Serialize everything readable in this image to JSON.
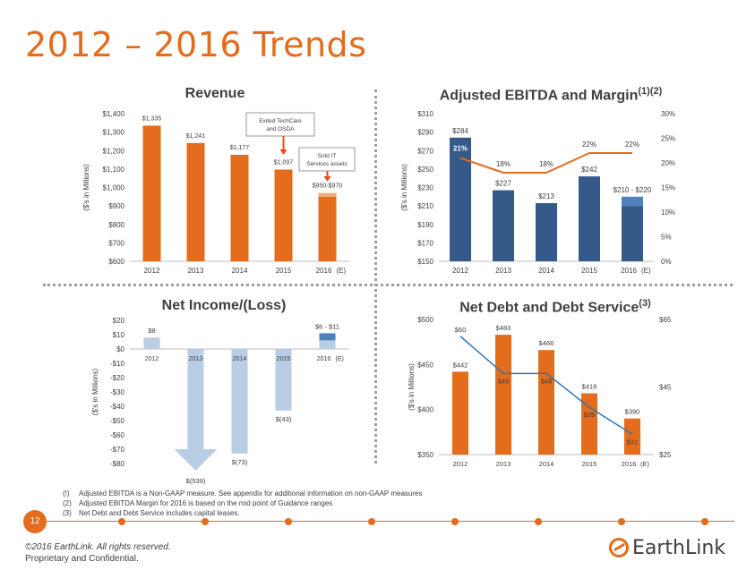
{
  "page_title": "2012 – 2016 Trends",
  "page_number": "12",
  "footnotes": [
    {
      "num": "(!)",
      "text": "Adjusted EBITDA is a Non-GAAP measure.  See appendix for additional information on non-GAAP measures"
    },
    {
      "num": "(2)",
      "text": "Adjusted EBITDA Margin for 2016 is based on the mid point of Guidance ranges"
    },
    {
      "num": "(3)",
      "text": "Net Debt and Debt Service includes capital leases."
    }
  ],
  "copyright": "©2016 EarthLink. All rights reserved.",
  "confidential": "Proprietary and Confidential.",
  "logo_text": "EarthLink",
  "colors": {
    "orange": "#e36c1d",
    "orange_light": "#f2a774",
    "navy": "#345a8a",
    "navy_light": "#4f81bd",
    "light_blue": "#b9cde5",
    "line_blue": "#2e75b6"
  },
  "chart_data": [
    {
      "type": "bar",
      "title": "Revenue",
      "ylabel": "($'s in Millions)",
      "categories": [
        "2012",
        "2013",
        "2014",
        "2015",
        "2016"
      ],
      "category_suffix": "(E)",
      "values": [
        1335,
        1241,
        1177,
        1097,
        960
      ],
      "range_high": 970,
      "range_low": 950,
      "data_labels": [
        "$1,335",
        "$1,241",
        "$1,177",
        "$1,097",
        "$950-$970"
      ],
      "ylim": [
        600,
        1400
      ],
      "ytick_values": [
        600,
        700,
        800,
        900,
        1000,
        1100,
        1200,
        1300,
        1400
      ],
      "yticks": [
        "$600",
        "$700",
        "$800",
        "$900",
        "$1,000",
        "$1,100",
        "$1,200",
        "$1,300",
        "$1,400"
      ],
      "annotations": [
        {
          "text": "Exited TechCare and OSDA",
          "category": "2015"
        },
        {
          "text": "Sold IT Services assets",
          "category": "2016"
        }
      ]
    },
    {
      "type": "bar+line",
      "title": "Adjusted EBITDA and Margin",
      "title_sup": "(1)(2)",
      "ylabel": "($'s in Millions)",
      "categories": [
        "2012",
        "2013",
        "2014",
        "2015",
        "2016"
      ],
      "category_suffix": "(E)",
      "values": [
        284,
        227,
        213,
        242,
        215
      ],
      "range_low": 210,
      "range_high": 220,
      "data_labels": [
        "$284",
        "$227",
        "$213",
        "$242",
        "$210 - $220"
      ],
      "ylim": [
        150,
        310
      ],
      "ytick_values": [
        150,
        170,
        190,
        210,
        230,
        250,
        270,
        290,
        310
      ],
      "yticks": [
        "$150",
        "$170",
        "$190",
        "$210",
        "$230",
        "$250",
        "$270",
        "$290",
        "$310"
      ],
      "margin_values": [
        21,
        18,
        18,
        22,
        22
      ],
      "margin_labels": [
        "21%",
        "18%",
        "18%",
        "22%",
        "22%"
      ],
      "y2lim": [
        0,
        30
      ],
      "y2tick_values": [
        0,
        5,
        10,
        15,
        20,
        25,
        30
      ],
      "y2ticks": [
        "0%",
        "5%",
        "10%",
        "15%",
        "20%",
        "25%",
        "30%"
      ]
    },
    {
      "type": "bar",
      "title": "Net Income/(Loss)",
      "ylabel": "($'s in Millions)",
      "categories": [
        "2012",
        "2013",
        "2014",
        "2015",
        "2016"
      ],
      "category_suffix": "(E)",
      "values": [
        8,
        -539,
        -73,
        -43,
        8.5
      ],
      "range_low": 6,
      "range_high": 11,
      "data_labels": [
        "$8",
        "$(539)",
        "$(73)",
        "$(43)",
        "$6 - $11"
      ],
      "ylim": [
        -80,
        20
      ],
      "ytick_values": [
        -80,
        -70,
        -60,
        -50,
        -40,
        -30,
        -20,
        -10,
        0,
        10,
        20
      ],
      "yticks": [
        "-$80",
        "-$70",
        "-$60",
        "-$50",
        "-$40",
        "-$30",
        "-$20",
        "-$10",
        "$0",
        "$10",
        "$20"
      ]
    },
    {
      "type": "bar+line",
      "title": "Net Debt and Debt Service",
      "title_sup": "(3)",
      "ylabel": "($'s in Millions)",
      "categories": [
        "2012",
        "2013",
        "2014",
        "2015",
        "2016"
      ],
      "category_suffix": "(E)",
      "values": [
        442,
        483,
        466,
        418,
        390
      ],
      "data_labels": [
        "$442",
        "$483",
        "$466",
        "$418",
        "$390"
      ],
      "ylim": [
        350,
        500
      ],
      "ytick_values": [
        350,
        400,
        450,
        500
      ],
      "yticks": [
        "$350",
        "$400",
        "$450",
        "$500"
      ],
      "line_values": [
        60,
        49,
        49,
        39,
        31
      ],
      "line_labels": [
        "$60",
        "$49",
        "$49",
        "$39",
        "$31"
      ],
      "y2lim": [
        25,
        65
      ],
      "y2tick_values": [
        25,
        45,
        65
      ],
      "y2ticks": [
        "$25",
        "$45",
        "$65"
      ]
    }
  ]
}
